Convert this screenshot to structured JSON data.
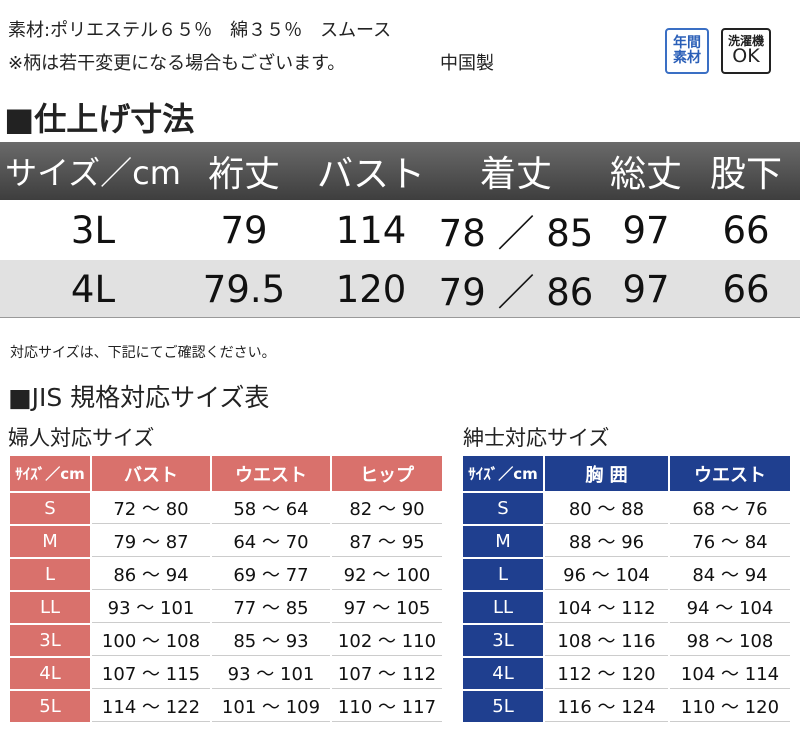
{
  "info": {
    "material": "素材:ポリエステル６５％　綿３５％　スムース",
    "note": "※柄は若干変更になる場合もございます。",
    "origin": "中国製"
  },
  "badges": [
    {
      "top": "年間",
      "bottom": "素材"
    },
    {
      "top": "洗濯機",
      "bottom": "OK"
    }
  ],
  "size_table": {
    "title": "■仕上げ寸法",
    "headers": [
      "サイズ／cm",
      "裄丈",
      "バスト",
      "着丈",
      "総丈",
      "股下"
    ],
    "rows": [
      [
        "3L",
        "79",
        "114",
        "78 ／ 85",
        "97",
        "66"
      ],
      [
        "4L",
        "79.5",
        "120",
        "79 ／ 86",
        "97",
        "66"
      ]
    ]
  },
  "jis": {
    "intro": "対応サイズは、下記にてご確認ください。",
    "title": "■JIS 規格対応サイズ表",
    "women": {
      "title": "婦人対応サイズ",
      "headers": [
        "ｻｲｽﾞ／cm",
        "バスト",
        "ウエスト",
        "ヒップ"
      ],
      "rows": [
        [
          "S",
          "72 ～ 80",
          "58 ～ 64",
          "82 ～ 90"
        ],
        [
          "M",
          "79 ～ 87",
          "64 ～ 70",
          "87 ～ 95"
        ],
        [
          "L",
          "86 ～ 94",
          "69 ～ 77",
          "92 ～ 100"
        ],
        [
          "LL",
          "93 ～ 101",
          "77 ～ 85",
          "97 ～ 105"
        ],
        [
          "3L",
          "100 ～ 108",
          "85 ～ 93",
          "102 ～ 110"
        ],
        [
          "4L",
          "107 ～ 115",
          "93 ～ 101",
          "107 ～ 112"
        ],
        [
          "5L",
          "114 ～ 122",
          "101 ～ 109",
          "110 ～ 117"
        ]
      ]
    },
    "men": {
      "title": "紳士対応サイズ",
      "headers": [
        "ｻｲｽﾞ／cm",
        "胸 囲",
        "ウエスト"
      ],
      "rows": [
        [
          "S",
          "80 ～ 88",
          "68 ～ 76"
        ],
        [
          "M",
          "88 ～ 96",
          "76 ～ 84"
        ],
        [
          "L",
          "96 ～ 104",
          "84 ～ 94"
        ],
        [
          "LL",
          "104 ～ 112",
          "94 ～ 104"
        ],
        [
          "3L",
          "108 ～ 116",
          "98 ～ 108"
        ],
        [
          "4L",
          "112 ～ 120",
          "104 ～ 114"
        ],
        [
          "5L",
          "116 ～ 124",
          "110 ～ 120"
        ]
      ]
    }
  }
}
